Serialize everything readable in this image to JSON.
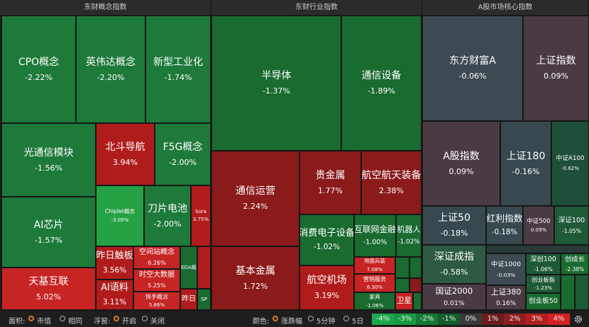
{
  "panels": [
    {
      "title": "东财概念指数",
      "cells": [
        {
          "name": "CPO概念",
          "change": "-2.22%"
        },
        {
          "name": "英伟达概念",
          "change": "-2.20%"
        },
        {
          "name": "新型工业化",
          "change": "-1.74%"
        },
        {
          "name": "光通信模块",
          "change": "-1.56%"
        },
        {
          "name": "北斗导航",
          "change": "3.94%"
        },
        {
          "name": "F5G概念",
          "change": "-2.00%"
        },
        {
          "name": "AI芯片",
          "change": "-1.57%"
        },
        {
          "name": "Chiplet概念",
          "change": "-3.05%"
        },
        {
          "name": "刀片电池",
          "change": "-2.00%"
        },
        {
          "name": "Sora",
          "change": "3.75%"
        },
        {
          "name": "天基互联",
          "change": "5.02%"
        },
        {
          "name": "昨日触板",
          "change": "3.56%"
        },
        {
          "name": "空间站概念",
          "change": "6.26%"
        },
        {
          "name": "时空大数据",
          "change": "5.25%"
        },
        {
          "name": "快手概念",
          "change": "5.86%"
        },
        {
          "name": "AI语料",
          "change": "3.11%"
        },
        {
          "name": "EDA概"
        },
        {
          "name": "昨日"
        },
        {
          "name": "SP"
        }
      ]
    },
    {
      "title": "东财行业指数",
      "cells": [
        {
          "name": "半导体",
          "change": "-1.37%"
        },
        {
          "name": "通信设备",
          "change": "-1.89%"
        },
        {
          "name": "通信运营",
          "change": "2.24%"
        },
        {
          "name": "贵金属",
          "change": "1.77%"
        },
        {
          "name": "航空航天装备",
          "change": "2.38%"
        },
        {
          "name": "基本金属",
          "change": "1.72%"
        },
        {
          "name": "消费电子设备",
          "change": "-1.02%"
        },
        {
          "name": "互联网金融",
          "change": "-1.00%"
        },
        {
          "name": "机器人",
          "change": "-1.02%"
        },
        {
          "name": "航空机场",
          "change": "3.19%"
        },
        {
          "name": "地面兵装",
          "change": "7.08%"
        },
        {
          "name": "营销服务",
          "change": "6.30%"
        },
        {
          "name": "家具",
          "change": "-1.06%"
        },
        {
          "name": "卫星"
        }
      ]
    },
    {
      "title": "A股市场核心指数",
      "cells": [
        {
          "name": "东方财富A",
          "change": "-0.06%"
        },
        {
          "name": "上证指数",
          "change": "0.09%"
        },
        {
          "name": "A股指数",
          "change": "0.09%"
        },
        {
          "name": "上证180",
          "change": "-0.16%"
        },
        {
          "name": "中证A100",
          "change": "-0.62%"
        },
        {
          "name": "上证50",
          "change": "-0.18%"
        },
        {
          "name": "红利指数",
          "change": "-0.18%"
        },
        {
          "name": "中证500",
          "change": "0.09%"
        },
        {
          "name": "深证100",
          "change": "-1.05%"
        },
        {
          "name": "深证成指",
          "change": "-0.58%"
        },
        {
          "name": "国证2000",
          "change": "0.01%"
        },
        {
          "name": "中证1000",
          "change": "-0.03%"
        },
        {
          "name": "上证380",
          "change": "0.16%"
        },
        {
          "name": "深创100",
          "change": "-1.06%"
        },
        {
          "name": "创成长",
          "change": "-2.38%"
        },
        {
          "name": "创业板指",
          "change": "-1.23%"
        },
        {
          "name": "创业板50"
        }
      ]
    }
  ],
  "toolbar": {
    "area_label": "面积:",
    "area_options": [
      "市值",
      "相同"
    ],
    "float_label": "浮窗:",
    "float_options": [
      "开启",
      "关闭"
    ],
    "color_label": "颜色:",
    "color_options": [
      "涨跌幅",
      "5分钟",
      "5日"
    ],
    "legend": [
      "-4%",
      "-3%",
      "-2%",
      "-1%",
      "0%",
      "1%",
      "2%",
      "3%",
      "4%"
    ]
  }
}
